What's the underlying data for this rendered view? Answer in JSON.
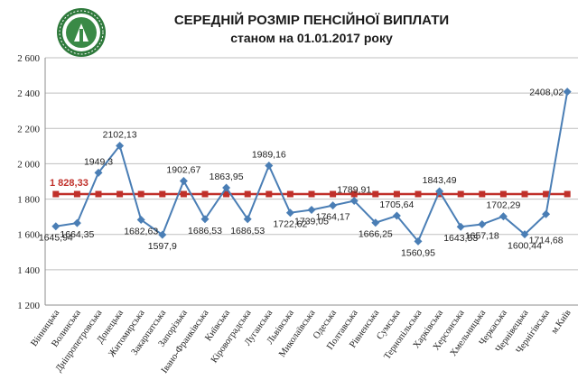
{
  "header": {
    "title": "СЕРЕДНІЙ РОЗМІР ПЕНСІЙНОЇ ВИПЛАТИ",
    "subtitle": "станом на 01.01.2017 року"
  },
  "logo_icon": "pension-fund-emblem",
  "chart_data": {
    "type": "line",
    "title": "СЕРЕДНІЙ РОЗМІР ПЕНСІЙНОЇ ВИПЛАТИ",
    "subtitle": "станом на 01.01.2017 року",
    "categories": [
      "Вінницька",
      "Волинська",
      "Дніпропетровська",
      "Донецька",
      "Житомирська",
      "Закарпатська",
      "Запорізька",
      "Івано-Франківська",
      "Київська",
      "Кіровоградська",
      "Луганська",
      "Львівська",
      "Миколаївська",
      "Одеська",
      "Полтавська",
      "Рівненська",
      "Сумська",
      "Тернопільська",
      "Харківська",
      "Херсонська",
      "Хмельницька",
      "Черкаська",
      "Чернівецька",
      "Чернігівська",
      "м.Київ"
    ],
    "series": [
      {
        "values": [
          1645.94,
          1664.35,
          1949.3,
          2102.13,
          1682.63,
          1597.9,
          1902.67,
          1686.53,
          1863.95,
          1686.53,
          1989.16,
          1722.62,
          1739.05,
          1764.17,
          1789.91,
          1666.25,
          1705.64,
          1560.95,
          1843.49,
          1643.53,
          1657.18,
          1702.29,
          1600.44,
          1714.68,
          2408.02
        ],
        "labels": [
          "1645,94",
          "1664,35",
          "1949,3",
          "2102,13",
          "1682,63",
          "1597,9",
          "1902,67",
          "1686,53",
          "1863,95",
          "1686,53",
          "1989,16",
          "1722,62",
          "1739,05",
          "1764,17",
          "1789,91",
          "1666,25",
          "1705,64",
          "1560,95",
          "1843,49",
          "1643,53",
          "1657,18",
          "1702,29",
          "1600,44",
          "1714,68",
          "2408,02"
        ],
        "color": "#4a7eb5",
        "marker": "diamond"
      },
      {
        "value": 1828.33,
        "label": "1 828,33",
        "color": "#c0302a",
        "marker": "square"
      }
    ],
    "ylim": [
      1200,
      2600
    ],
    "yticks": [
      1200,
      1400,
      1600,
      1800,
      2000,
      2200,
      2400,
      2600
    ],
    "ytick_labels": [
      "1 200",
      "1 400",
      "1 600",
      "1 800",
      "2 000",
      "2 200",
      "2 400",
      "2 600"
    ],
    "grid": true
  }
}
